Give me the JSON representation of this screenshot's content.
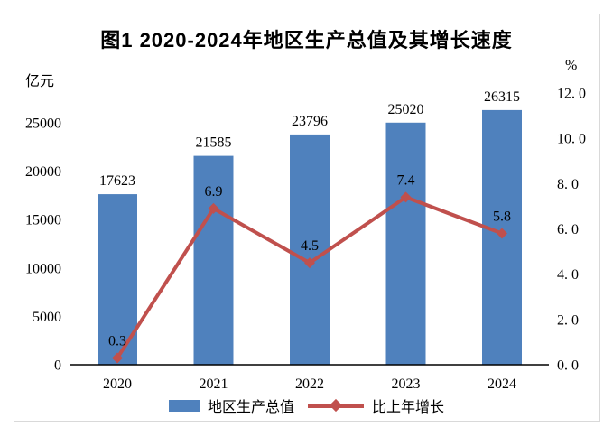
{
  "frame": {
    "background": "#ffffff",
    "border_color": "#d9d9d9"
  },
  "chart_data": {
    "type": "bar+line combo",
    "title": "图1 2020-2024年地区生产总值及其增长速度",
    "categories": [
      "2020",
      "2021",
      "2022",
      "2023",
      "2024"
    ],
    "series": [
      {
        "name": "地区生产总值",
        "type": "bar",
        "axis": "left",
        "color": "#4f81bd",
        "values": [
          17623,
          21585,
          23796,
          25020,
          26315
        ],
        "data_labels": [
          "17623",
          "21585",
          "23796",
          "25020",
          "26315"
        ]
      },
      {
        "name": "比上年增长",
        "type": "line",
        "axis": "right",
        "color": "#c0504d",
        "marker": "diamond",
        "values": [
          0.3,
          6.9,
          4.5,
          7.4,
          5.8
        ],
        "data_labels": [
          "0.3",
          "6.9",
          "4.5",
          "7.4",
          "5.8"
        ]
      }
    ],
    "left_axis": {
      "unit_label": "亿元",
      "min": 0,
      "max": 25000,
      "ticks": [
        {
          "label": "0",
          "value": 0
        },
        {
          "label": "5000",
          "value": 5000
        },
        {
          "label": "10000",
          "value": 10000
        },
        {
          "label": "15000",
          "value": 15000
        },
        {
          "label": "20000",
          "value": 20000
        },
        {
          "label": "25000",
          "value": 25000
        }
      ]
    },
    "right_axis": {
      "unit_label": "%",
      "min": 0,
      "max": 12,
      "ticks": [
        {
          "label": "0. 0",
          "value": 0
        },
        {
          "label": "2. 0",
          "value": 2
        },
        {
          "label": "4. 0",
          "value": 4
        },
        {
          "label": "6. 0",
          "value": 6
        },
        {
          "label": "8. 0",
          "value": 8
        },
        {
          "label": "10. 0",
          "value": 10
        },
        {
          "label": "12. 0",
          "value": 12
        }
      ]
    },
    "legend_position": "bottom",
    "gridlines": false,
    "text_color": "#000000",
    "axis_line_color": "#000000"
  }
}
